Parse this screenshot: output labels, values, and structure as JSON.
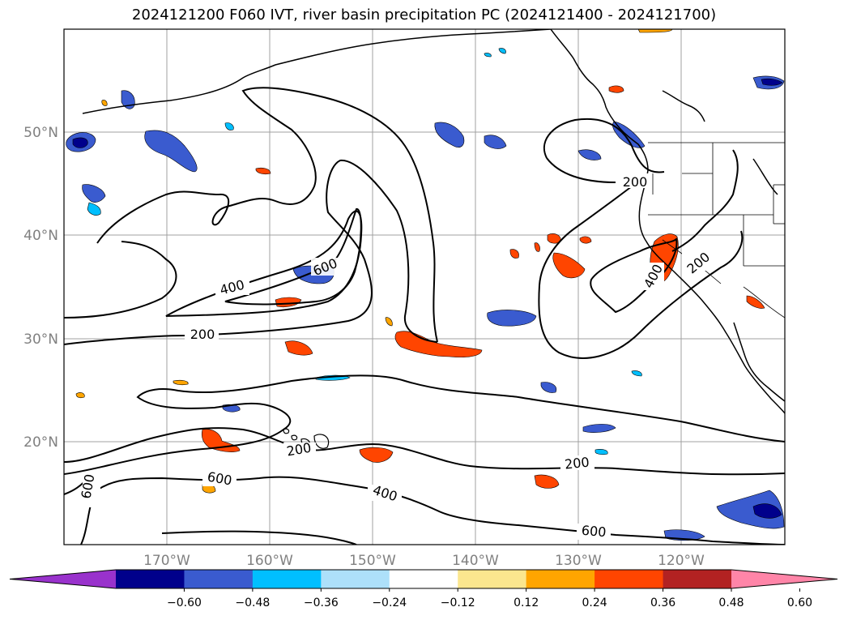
{
  "title": "2024121200 F060 IVT, river basin precipitation PC (2024121400 - 2024121700)",
  "latitude_labels": [
    "20°N",
    "30°N",
    "40°N",
    "50°N"
  ],
  "longitude_labels": [
    "170°W",
    "160°W",
    "150°W",
    "140°W",
    "130°W",
    "120°W"
  ],
  "ivt_contour_labels": [
    {
      "id": "c200a",
      "text": "200"
    },
    {
      "id": "c200b",
      "text": "200"
    },
    {
      "id": "c200c",
      "text": "200"
    },
    {
      "id": "c200d",
      "text": "200"
    },
    {
      "id": "c200e",
      "text": "200"
    },
    {
      "id": "c400a",
      "text": "400"
    },
    {
      "id": "c400b",
      "text": "400"
    },
    {
      "id": "c400c",
      "text": "400"
    },
    {
      "id": "c600a",
      "text": "600"
    },
    {
      "id": "c600b",
      "text": "600"
    },
    {
      "id": "c600c",
      "text": "600"
    },
    {
      "id": "c600d",
      "text": "600"
    }
  ],
  "colorbar": {
    "ticks": [
      "−0.60",
      "−0.48",
      "−0.36",
      "−0.24",
      "−0.12",
      "0.12",
      "0.24",
      "0.36",
      "0.48",
      "0.60"
    ],
    "colors": [
      "#9932cc",
      "#00008b",
      "#3a5bcf",
      "#00bfff",
      "#ade0fa",
      "#ffffff",
      "#fbe68e",
      "#ffa500",
      "#ff4500",
      "#b22222",
      "#ff85a8"
    ]
  },
  "map_extent": {
    "lon_min": -180,
    "lon_max": -110,
    "lat_min": 10,
    "lat_max": 60
  },
  "ivt_levels": [
    200,
    400,
    600
  ]
}
